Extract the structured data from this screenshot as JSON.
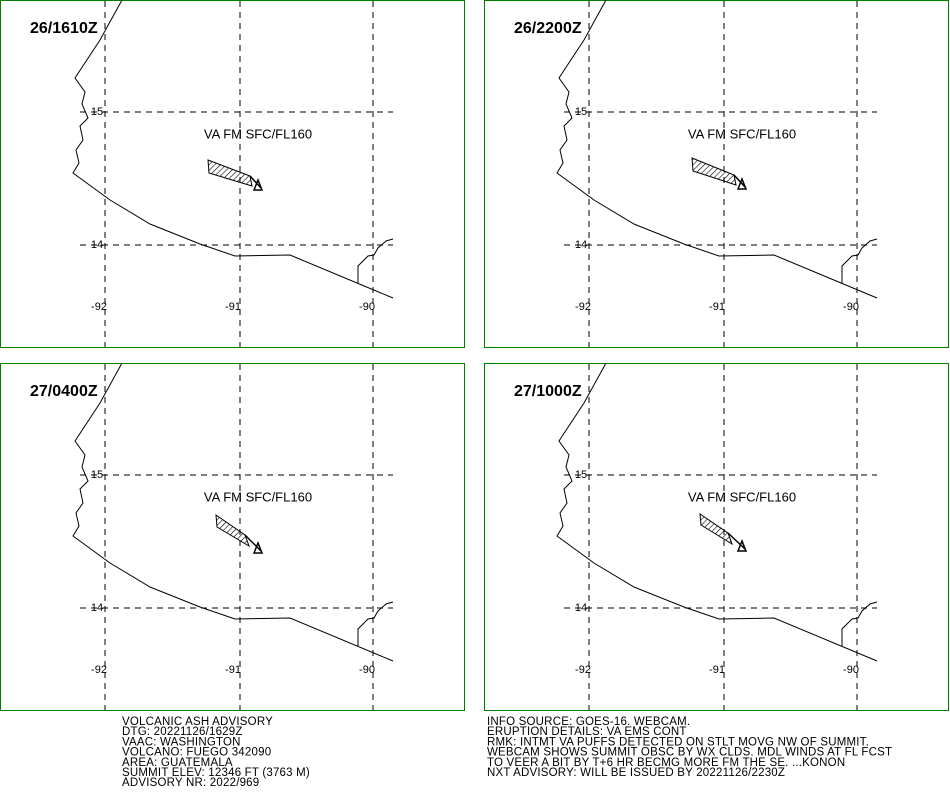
{
  "panels": [
    {
      "time": "26/1610Z",
      "annotation": "VA FM SFC/FL160"
    },
    {
      "time": "26/2200Z",
      "annotation": "VA FM SFC/FL160"
    },
    {
      "time": "27/0400Z",
      "annotation": "VA FM SFC/FL160"
    },
    {
      "time": "27/1000Z",
      "annotation": "VA FM SFC/FL160"
    }
  ],
  "lat_labels": [
    "15",
    "14"
  ],
  "lon_labels": [
    "-92",
    "-91",
    "-90"
  ],
  "advisory_left": [
    "VOLCANIC ASH ADVISORY",
    "DTG: 20221126/1629Z",
    "VAAC: WASHINGTON",
    "VOLCANO: FUEGO 342090",
    "AREA: GUATEMALA",
    "SUMMIT ELEV: 12346 FT (3763 M)",
    "ADVISORY NR: 2022/969"
  ],
  "advisory_right": [
    "INFO SOURCE: GOES-16. WEBCAM.",
    "ERUPTION DETAILS: VA EMS CONT",
    "RMK: INTMT VA PUFFS DETECTED ON STLT MOVG NW OF SUMMIT.",
    "WEBCAM SHOWS SUMMIT OBSC BY WX CLDS. MDL WINDS AT FL FCST",
    "TO VEER A BIT BY T+6 HR BECMG MORE FM THE SE. ...KONON",
    "NXT ADVISORY: WILL BE ISSUED BY 20221126/2230Z"
  ]
}
